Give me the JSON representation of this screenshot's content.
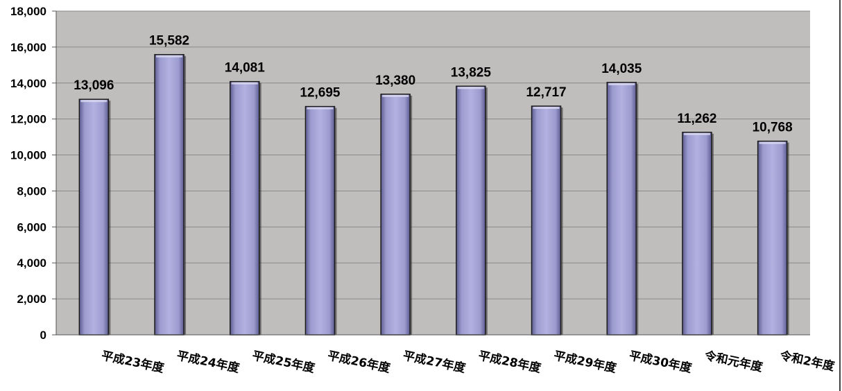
{
  "chart_data": {
    "type": "bar",
    "categories": [
      "平成23年度",
      "平成24年度",
      "平成25年度",
      "平成26年度",
      "平成27年度",
      "平成28年度",
      "平成29年度",
      "平成30年度",
      "令和元年度",
      "令和2年度"
    ],
    "values": [
      13096,
      15582,
      14081,
      12695,
      13380,
      13825,
      12717,
      14035,
      11262,
      10768
    ],
    "data_labels": [
      "13,096",
      "15,582",
      "14,081",
      "12,695",
      "13,380",
      "13,825",
      "12,717",
      "14,035",
      "11,262",
      "10,768"
    ],
    "ylim": [
      0,
      18000
    ],
    "yticks": [
      0,
      2000,
      4000,
      6000,
      8000,
      10000,
      12000,
      14000,
      16000,
      18000
    ],
    "ytick_labels": [
      "0",
      "2,000",
      "4,000",
      "6,000",
      "8,000",
      "10,000",
      "12,000",
      "14,000",
      "16,000",
      "18,000"
    ],
    "grid": true,
    "colors": {
      "plot_background": "#c0bdbd",
      "bar_fill": "#a7a6d6",
      "bar_edge": "#1a1a1a",
      "gridline": "#8a8a8a"
    }
  }
}
